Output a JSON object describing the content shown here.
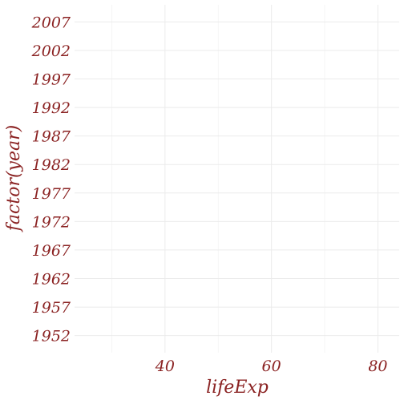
{
  "chart_data": {
    "type": "scatter",
    "x": [],
    "y": [],
    "xlabel": "lifeExp",
    "ylabel": "factor(year)",
    "xlim": [
      23,
      84
    ],
    "x_ticks": [
      40,
      60,
      80
    ],
    "y_categories": [
      "1952",
      "1957",
      "1962",
      "1967",
      "1972",
      "1977",
      "1982",
      "1987",
      "1992",
      "1997",
      "2002",
      "2007"
    ],
    "grid": true,
    "colors": {
      "text": "#8b2323",
      "grid_major": "#ebebeb",
      "grid_minor": "#f3f3f3",
      "background": "#ffffff"
    }
  }
}
